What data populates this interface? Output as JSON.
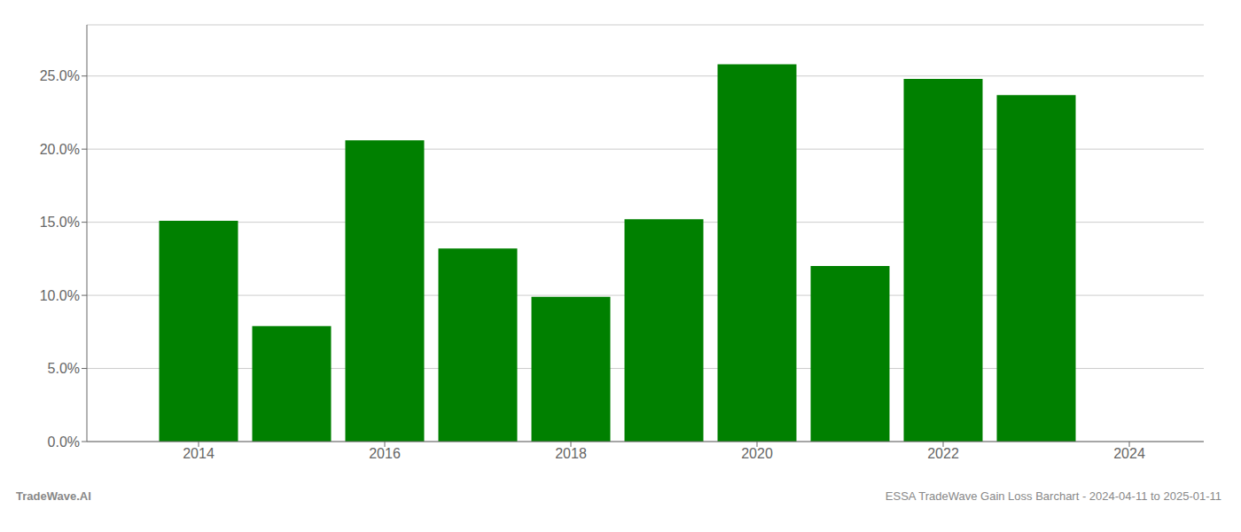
{
  "chart_data": {
    "type": "bar",
    "x": [
      2014,
      2015,
      2016,
      2017,
      2018,
      2019,
      2020,
      2021,
      2022,
      2023
    ],
    "values": [
      0.151,
      0.079,
      0.206,
      0.132,
      0.099,
      0.152,
      0.258,
      0.12,
      0.248,
      0.237
    ],
    "color": "#008000",
    "xlim": [
      2012.8,
      2024.8
    ],
    "xticks": [
      2014,
      2016,
      2018,
      2020,
      2022,
      2024
    ],
    "ylim": [
      0,
      0.285
    ],
    "yticks": [
      {
        "value": 0.0,
        "label": "0.0%"
      },
      {
        "value": 0.05,
        "label": "5.0%"
      },
      {
        "value": 0.1,
        "label": "10.0%"
      },
      {
        "value": 0.15,
        "label": "15.0%"
      },
      {
        "value": 0.2,
        "label": "20.0%"
      },
      {
        "value": 0.25,
        "label": "25.0%"
      }
    ],
    "grid": true,
    "annotations": [
      "TradeWave.AI",
      "ESSA TradeWave Gain Loss Barchart - 2024-04-11 to 2025-01-11"
    ]
  }
}
